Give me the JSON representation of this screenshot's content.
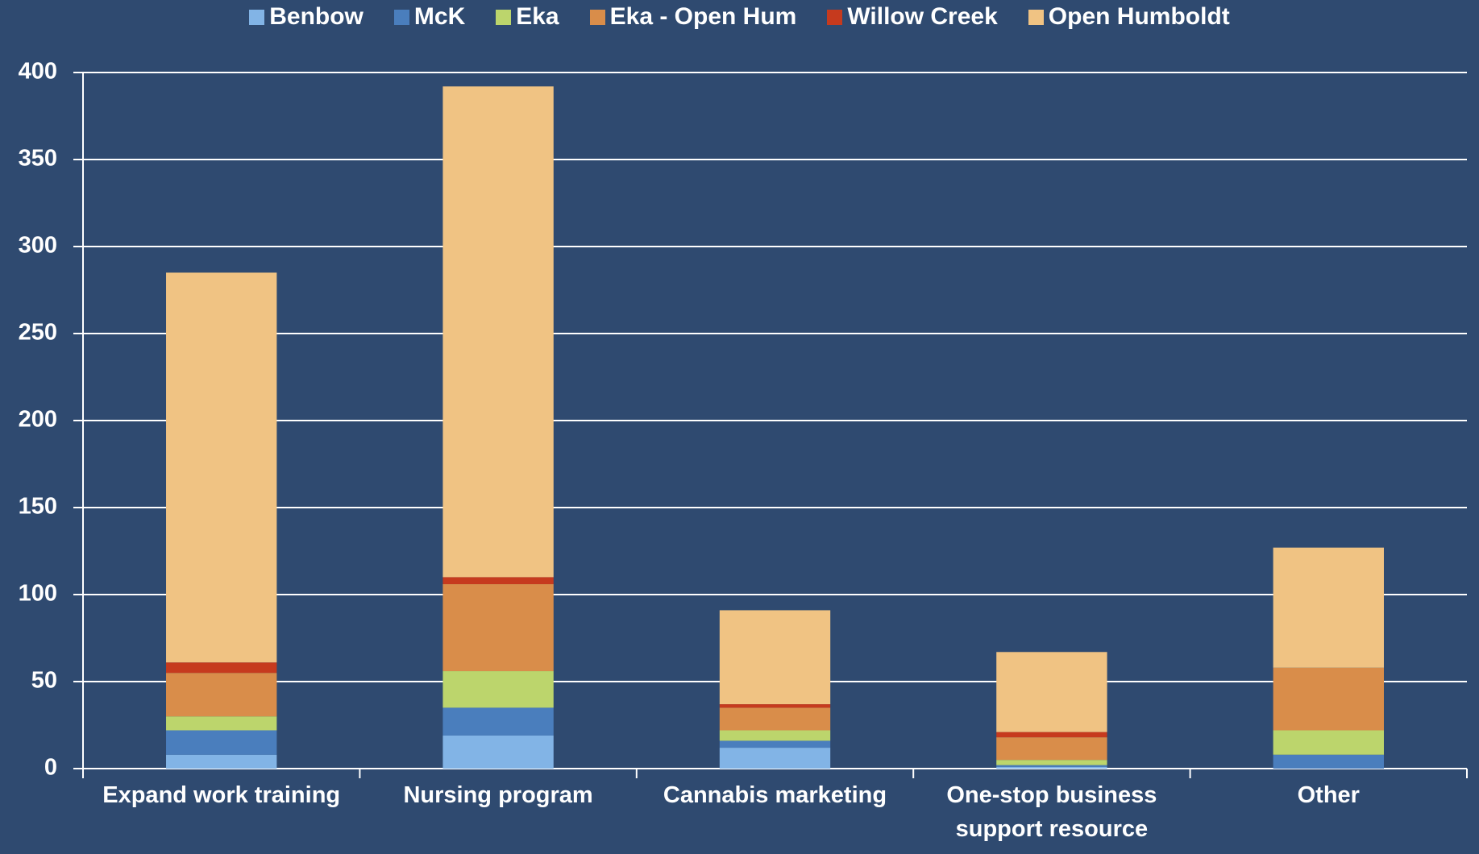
{
  "chart_data": {
    "type": "stacked_bar",
    "categories": [
      "Expand work training",
      "Nursing program",
      "Cannabis marketing",
      "One-stop business support resource",
      "Other"
    ],
    "series": [
      {
        "name": "Benbow",
        "color": "#82b4e6",
        "values": [
          8,
          19,
          12,
          1,
          0
        ]
      },
      {
        "name": "McK",
        "color": "#4a7ebd",
        "values": [
          14,
          16,
          4,
          1,
          8
        ]
      },
      {
        "name": "Eka",
        "color": "#bcd56c",
        "values": [
          8,
          21,
          6,
          3,
          14
        ]
      },
      {
        "name": "Eka - Open Hum",
        "color": "#d98d4a",
        "values": [
          25,
          50,
          13,
          13,
          36
        ]
      },
      {
        "name": "Willow Creek",
        "color": "#c63a1e",
        "values": [
          6,
          4,
          2,
          3,
          0
        ]
      },
      {
        "name": "Open Humboldt",
        "color": "#f0c383",
        "values": [
          224,
          282,
          54,
          46,
          69
        ]
      }
    ],
    "ylim": [
      0,
      400
    ],
    "yticks": [
      0,
      50,
      100,
      150,
      200,
      250,
      300,
      350,
      400
    ],
    "grid": true
  }
}
